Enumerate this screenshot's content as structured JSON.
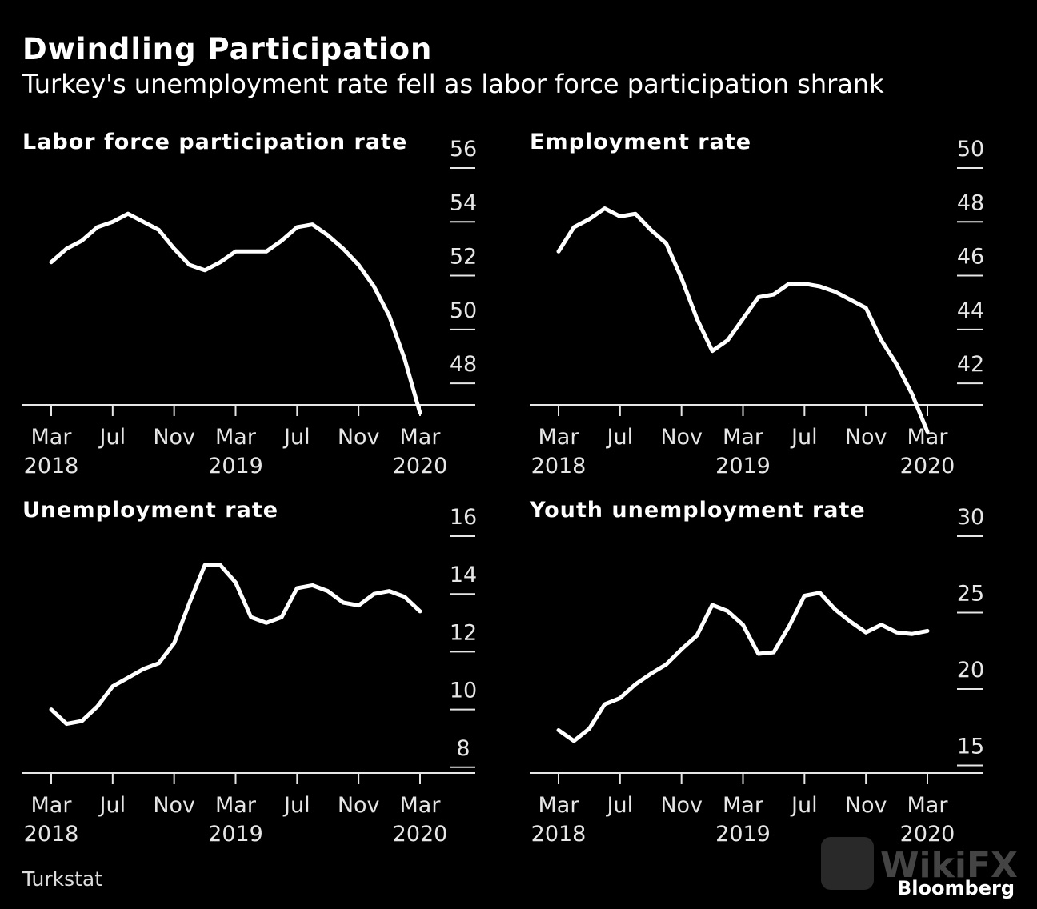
{
  "title": "Dwindling Participation",
  "subtitle": "Turkey's unemployment rate fell as labor force participation shrank",
  "source": "Turkstat",
  "brand": "Bloomberg",
  "watermark": "WikiFX",
  "colors": {
    "background": "#000000",
    "line": "#ffffff",
    "text": "#ffffff"
  },
  "chart_data": [
    {
      "type": "line",
      "title": "Labor force participation rate",
      "xlabel": "",
      "ylabel": "",
      "x": [
        "Mar 2018",
        "Apr 2018",
        "May 2018",
        "Jun 2018",
        "Jul 2018",
        "Aug 2018",
        "Sep 2018",
        "Oct 2018",
        "Nov 2018",
        "Dec 2018",
        "Jan 2019",
        "Feb 2019",
        "Mar 2019",
        "Apr 2019",
        "May 2019",
        "Jun 2019",
        "Jul 2019",
        "Aug 2019",
        "Sep 2019",
        "Oct 2019",
        "Nov 2019",
        "Dec 2019",
        "Jan 2020",
        "Feb 2020",
        "Mar 2020"
      ],
      "values": [
        52.5,
        53.0,
        53.3,
        53.8,
        54.0,
        54.3,
        54.0,
        53.7,
        53.0,
        52.4,
        52.2,
        52.5,
        52.9,
        52.9,
        52.9,
        53.3,
        53.8,
        53.9,
        53.5,
        53.0,
        52.4,
        51.6,
        50.5,
        48.9,
        46.9
      ],
      "ylim": [
        47.2,
        56.0
      ],
      "yticks": [
        "56",
        "54",
        "52",
        "50",
        "48"
      ],
      "ytick_values": [
        56,
        54,
        52,
        50,
        48
      ],
      "xticks": [
        {
          "month": "Mar",
          "year": "2018"
        },
        {
          "month": "Jul",
          "year": ""
        },
        {
          "month": "Nov",
          "year": ""
        },
        {
          "month": "Mar",
          "year": "2019"
        },
        {
          "month": "Jul",
          "year": ""
        },
        {
          "month": "Nov",
          "year": ""
        },
        {
          "month": "Mar",
          "year": "2020"
        }
      ]
    },
    {
      "type": "line",
      "title": "Employment rate",
      "xlabel": "",
      "ylabel": "",
      "x": [
        "Mar 2018",
        "Apr 2018",
        "May 2018",
        "Jun 2018",
        "Jul 2018",
        "Aug 2018",
        "Sep 2018",
        "Oct 2018",
        "Nov 2018",
        "Dec 2018",
        "Jan 2019",
        "Feb 2019",
        "Mar 2019",
        "Apr 2019",
        "May 2019",
        "Jun 2019",
        "Jul 2019",
        "Aug 2019",
        "Sep 2019",
        "Oct 2019",
        "Nov 2019",
        "Dec 2019",
        "Jan 2020",
        "Feb 2020",
        "Mar 2020"
      ],
      "values": [
        46.9,
        47.8,
        48.1,
        48.5,
        48.2,
        48.3,
        47.7,
        47.2,
        45.9,
        44.4,
        43.2,
        43.6,
        44.4,
        45.2,
        45.3,
        45.7,
        45.7,
        45.6,
        45.4,
        45.1,
        44.8,
        43.6,
        42.7,
        41.6,
        40.2
      ],
      "ylim": [
        41.2,
        50.0
      ],
      "yticks": [
        "50",
        "48",
        "46",
        "44",
        "42"
      ],
      "ytick_values": [
        50,
        48,
        46,
        44,
        42
      ],
      "xticks": [
        {
          "month": "Mar",
          "year": "2018"
        },
        {
          "month": "Jul",
          "year": ""
        },
        {
          "month": "Nov",
          "year": ""
        },
        {
          "month": "Mar",
          "year": "2019"
        },
        {
          "month": "Jul",
          "year": ""
        },
        {
          "month": "Nov",
          "year": ""
        },
        {
          "month": "Mar",
          "year": "2020"
        }
      ]
    },
    {
      "type": "line",
      "title": "Unemployment rate",
      "xlabel": "",
      "ylabel": "",
      "x": [
        "Mar 2018",
        "Apr 2018",
        "May 2018",
        "Jun 2018",
        "Jul 2018",
        "Aug 2018",
        "Sep 2018",
        "Oct 2018",
        "Nov 2018",
        "Dec 2018",
        "Jan 2019",
        "Feb 2019",
        "Mar 2019",
        "Apr 2019",
        "May 2019",
        "Jun 2019",
        "Jul 2019",
        "Aug 2019",
        "Sep 2019",
        "Oct 2019",
        "Nov 2019",
        "Dec 2019",
        "Jan 2020",
        "Feb 2020",
        "Mar 2020"
      ],
      "values": [
        10.0,
        9.5,
        9.6,
        10.1,
        10.8,
        11.1,
        11.4,
        11.6,
        12.3,
        13.7,
        15.0,
        15.0,
        14.4,
        13.2,
        13.0,
        13.2,
        14.2,
        14.3,
        14.1,
        13.7,
        13.6,
        14.0,
        14.1,
        13.9,
        13.4
      ],
      "ylim": [
        7.8,
        16.0
      ],
      "yticks": [
        "16",
        "14",
        "12",
        "10",
        "8"
      ],
      "ytick_values": [
        16,
        14,
        12,
        10,
        8
      ],
      "xticks": [
        {
          "month": "Mar",
          "year": "2018"
        },
        {
          "month": "Jul",
          "year": ""
        },
        {
          "month": "Nov",
          "year": ""
        },
        {
          "month": "Mar",
          "year": "2019"
        },
        {
          "month": "Jul",
          "year": ""
        },
        {
          "month": "Nov",
          "year": ""
        },
        {
          "month": "Mar",
          "year": "2020"
        }
      ]
    },
    {
      "type": "line",
      "title": "Youth unemployment rate",
      "xlabel": "",
      "ylabel": "",
      "x": [
        "Mar 2018",
        "Apr 2018",
        "May 2018",
        "Jun 2018",
        "Jul 2018",
        "Aug 2018",
        "Sep 2018",
        "Oct 2018",
        "Nov 2018",
        "Dec 2018",
        "Jan 2019",
        "Feb 2019",
        "Mar 2019",
        "Apr 2019",
        "May 2019",
        "Jun 2019",
        "Jul 2019",
        "Aug 2019",
        "Sep 2019",
        "Oct 2019",
        "Nov 2019",
        "Dec 2019",
        "Jan 2020",
        "Feb 2020",
        "Mar 2020"
      ],
      "values": [
        17.3,
        16.6,
        17.4,
        19.0,
        19.4,
        20.3,
        21.0,
        21.6,
        22.6,
        23.5,
        25.5,
        25.1,
        24.2,
        22.3,
        22.4,
        24.1,
        26.1,
        26.3,
        25.2,
        24.4,
        23.7,
        24.2,
        23.7,
        23.6,
        23.8
      ],
      "ylim": [
        14.5,
        30.0
      ],
      "yticks": [
        "30",
        "25",
        "20",
        "15"
      ],
      "ytick_values": [
        30,
        25,
        20,
        15
      ],
      "xticks": [
        {
          "month": "Mar",
          "year": "2018"
        },
        {
          "month": "Jul",
          "year": ""
        },
        {
          "month": "Nov",
          "year": ""
        },
        {
          "month": "Mar",
          "year": "2019"
        },
        {
          "month": "Jul",
          "year": ""
        },
        {
          "month": "Nov",
          "year": ""
        },
        {
          "month": "Mar",
          "year": "2020"
        }
      ]
    }
  ]
}
